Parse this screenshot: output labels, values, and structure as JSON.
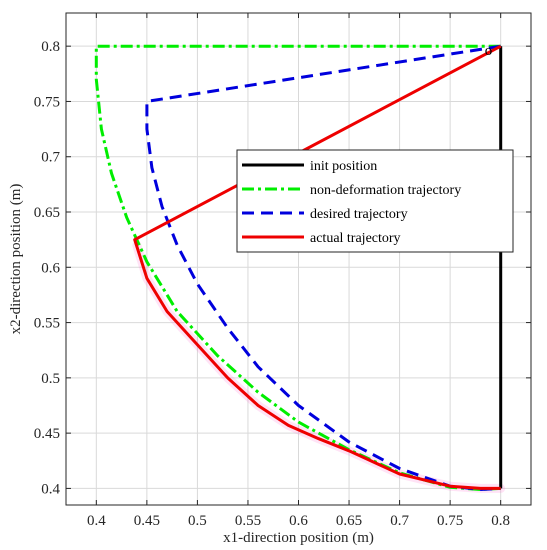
{
  "chart_data": {
    "type": "line",
    "title": "",
    "xlabel": "x1-direction position (m)",
    "ylabel": "x2-direction position (m)",
    "xlim": [
      0.37,
      0.83
    ],
    "ylim": [
      0.385,
      0.83
    ],
    "xticks": [
      0.4,
      0.45,
      0.5,
      0.55,
      0.6,
      0.65,
      0.7,
      0.75,
      0.8
    ],
    "yticks": [
      0.4,
      0.45,
      0.5,
      0.55,
      0.6,
      0.65,
      0.7,
      0.75,
      0.8
    ],
    "grid": true,
    "legend_position": "center-right",
    "annotations": [
      {
        "text": "o",
        "x": 0.788,
        "y": 0.792
      }
    ],
    "series": [
      {
        "name": "init position",
        "color": "#000000",
        "style": "solid",
        "x": [
          0.8,
          0.8
        ],
        "y": [
          0.8,
          0.4
        ]
      },
      {
        "name": "non-deformation trajectory",
        "color": "#00ee00",
        "style": "dashdot",
        "x": [
          0.8,
          0.4,
          0.4,
          0.405,
          0.415,
          0.43,
          0.45,
          0.48,
          0.52,
          0.56,
          0.6,
          0.65,
          0.7,
          0.75,
          0.78,
          0.8
        ],
        "y": [
          0.8,
          0.8,
          0.77,
          0.725,
          0.685,
          0.645,
          0.605,
          0.56,
          0.52,
          0.487,
          0.46,
          0.435,
          0.414,
          0.401,
          0.399,
          0.4
        ]
      },
      {
        "name": "desired trajectory",
        "color": "#0000dd",
        "style": "dashed",
        "x": [
          0.8,
          0.45,
          0.45,
          0.455,
          0.465,
          0.48,
          0.5,
          0.53,
          0.56,
          0.6,
          0.65,
          0.7,
          0.75,
          0.78,
          0.8
        ],
        "y": [
          0.8,
          0.75,
          0.725,
          0.69,
          0.655,
          0.62,
          0.585,
          0.545,
          0.51,
          0.475,
          0.442,
          0.418,
          0.402,
          0.399,
          0.4
        ]
      },
      {
        "name": "actual trajectory",
        "color": "#ee0000",
        "style": "solid",
        "x": [
          0.8,
          0.438,
          0.45,
          0.47,
          0.5,
          0.53,
          0.56,
          0.59,
          0.62,
          0.65,
          0.7,
          0.75,
          0.78,
          0.8
        ],
        "y": [
          0.8,
          0.625,
          0.59,
          0.56,
          0.53,
          0.5,
          0.475,
          0.457,
          0.445,
          0.434,
          0.413,
          0.402,
          0.4,
          0.4
        ]
      }
    ],
    "shadow_trace": {
      "color": "#ff66cc",
      "x": [
        0.44,
        0.45,
        0.47,
        0.5,
        0.53,
        0.56,
        0.59,
        0.62,
        0.65,
        0.7,
        0.75,
        0.78,
        0.8
      ],
      "y": [
        0.62,
        0.59,
        0.56,
        0.53,
        0.5,
        0.475,
        0.457,
        0.445,
        0.434,
        0.413,
        0.402,
        0.4,
        0.4
      ]
    }
  }
}
